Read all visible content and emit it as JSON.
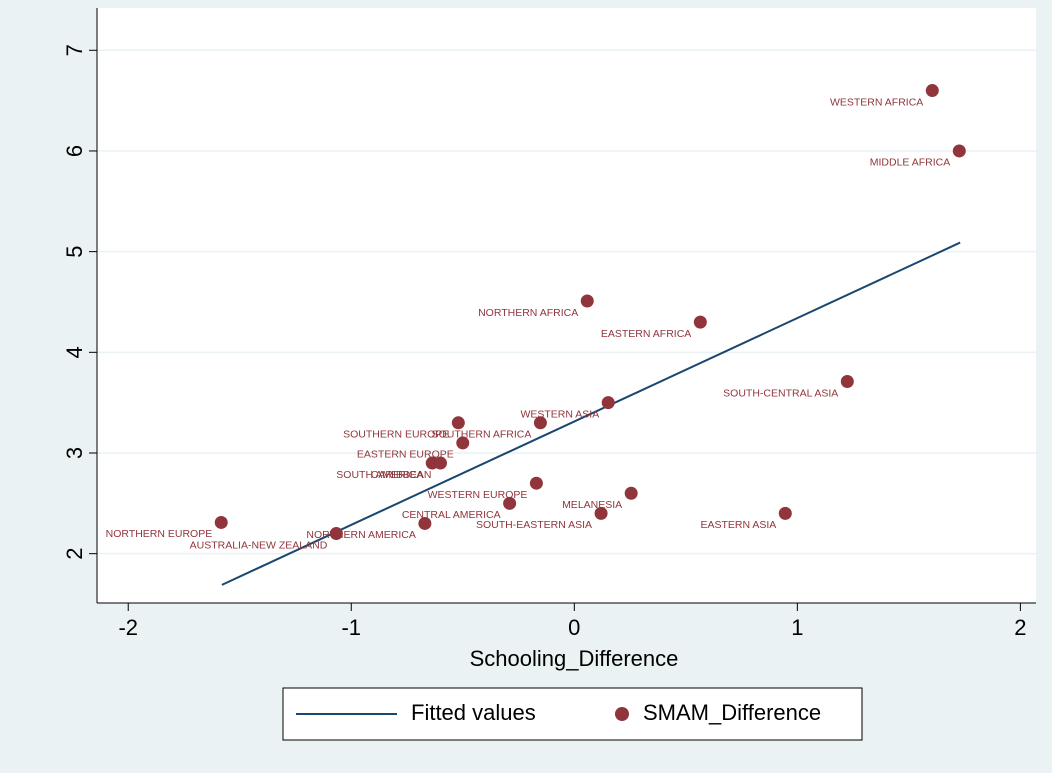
{
  "chart_data": {
    "type": "scatter",
    "xlabel": "Schooling_Difference",
    "xlim": [
      -2.14,
      2.07
    ],
    "xticks": [
      -2,
      -1,
      0,
      1,
      2
    ],
    "ylim": [
      1.51,
      7.42
    ],
    "yticks": [
      2,
      3,
      4,
      5,
      6,
      7
    ],
    "grid": true,
    "legend": "bottom",
    "series": [
      {
        "name": "Fitted values",
        "type": "line",
        "color": "#1a476f",
        "x": [
          -1.58,
          1.73
        ],
        "values": [
          1.69,
          5.09
        ]
      },
      {
        "name": "SMAM_Difference",
        "type": "scatter",
        "color": "#90353b",
        "x": [
          1.605,
          1.726,
          0.058,
          0.565,
          1.224,
          0.152,
          -0.152,
          -0.52,
          -0.5,
          -0.637,
          -0.6,
          -0.17,
          -0.29,
          -0.67,
          0.255,
          0.12,
          0.946,
          -1.583,
          -1.067
        ],
        "values": [
          6.6,
          6.0,
          4.51,
          4.3,
          3.71,
          3.5,
          3.3,
          3.3,
          3.1,
          2.9,
          2.9,
          2.7,
          2.5,
          2.3,
          2.6,
          2.4,
          2.4,
          2.31,
          2.2
        ],
        "labels": [
          "WESTERN AFRICA",
          "MIDDLE AFRICA",
          "NORTHERN AFRICA",
          "EASTERN AFRICA",
          "SOUTH-CENTRAL ASIA",
          "WESTERN ASIA",
          "SOUTHERN AFRICA",
          "SOUTHERN EUROPE",
          "EASTERN EUROPE",
          "SOUTH AMERICA",
          "CARIBBEAN",
          "WESTERN EUROPE",
          "CENTRAL AMERICA",
          "NORTHERN AMERICA",
          "MELANESIA",
          "SOUTH-EASTERN ASIA",
          "EASTERN ASIA",
          "NORTHERN EUROPE",
          "AUSTRALIA-NEW ZEALAND"
        ]
      }
    ]
  }
}
